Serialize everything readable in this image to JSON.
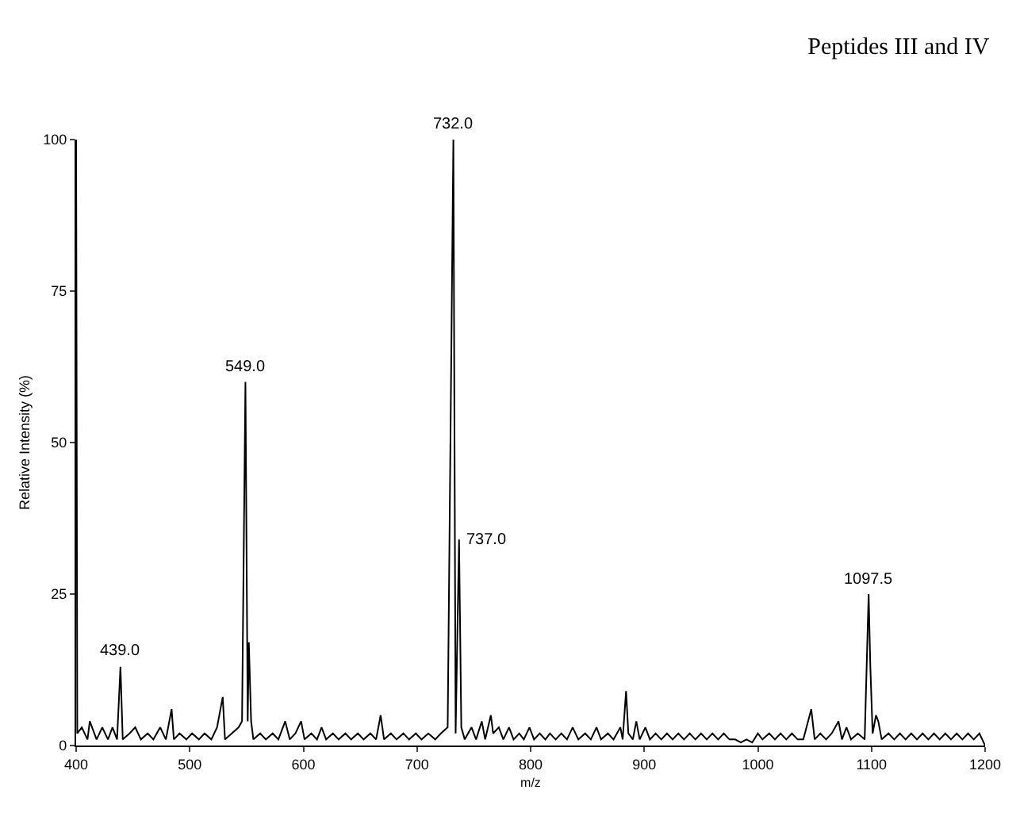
{
  "chart_data": {
    "type": "line",
    "title": "Peptides III and IV",
    "xlabel": "m/z",
    "ylabel": "Relative Intensity (%)",
    "x": [
      400,
      401,
      405,
      410,
      412,
      418,
      423,
      428,
      432,
      436,
      439,
      441,
      447,
      452,
      457,
      463,
      468,
      474,
      479,
      484,
      486,
      491,
      497,
      502,
      508,
      513,
      519,
      524,
      529,
      531,
      537,
      543,
      546,
      549,
      551,
      552,
      554,
      556,
      562,
      567,
      573,
      578,
      584,
      588,
      593,
      598,
      601,
      607,
      612,
      616,
      620,
      626,
      631,
      637,
      642,
      648,
      653,
      659,
      664,
      668,
      671,
      677,
      682,
      688,
      693,
      699,
      704,
      710,
      716,
      721,
      727,
      732,
      734,
      737,
      739,
      742,
      748,
      752,
      757,
      760,
      765,
      767,
      772,
      776,
      781,
      785,
      790,
      794,
      799,
      803,
      808,
      813,
      817,
      822,
      827,
      832,
      837,
      842,
      848,
      853,
      858,
      862,
      868,
      873,
      879,
      881,
      884,
      886,
      890,
      893,
      896,
      901,
      905,
      910,
      915,
      920,
      925,
      930,
      935,
      940,
      945,
      950,
      955,
      960,
      965,
      970,
      975,
      980,
      985,
      990,
      995,
      1000,
      1004,
      1010,
      1015,
      1020,
      1025,
      1030,
      1035,
      1040,
      1047,
      1050,
      1055,
      1060,
      1065,
      1071,
      1074,
      1078,
      1082,
      1088,
      1094,
      1097.5,
      1099,
      1101,
      1104,
      1106,
      1109,
      1115,
      1120,
      1125,
      1130,
      1135,
      1140,
      1145,
      1150,
      1155,
      1160,
      1165,
      1170,
      1175,
      1180,
      1185,
      1190,
      1195,
      1200
    ],
    "series": [
      {
        "color": "#000000",
        "values": [
          100,
          2,
          3,
          1,
          4,
          1,
          3,
          1,
          3,
          1,
          13,
          1,
          2,
          3,
          1,
          2,
          1,
          3,
          1,
          6,
          1,
          2,
          1,
          2,
          1,
          2,
          1,
          3,
          8,
          1,
          2,
          3,
          4,
          60,
          4,
          17,
          4,
          1,
          2,
          1,
          2,
          1,
          4,
          1,
          2,
          4,
          1,
          2,
          1,
          3,
          1,
          2,
          1,
          2,
          1,
          2,
          1,
          2,
          1,
          5,
          1,
          2,
          1,
          2,
          1,
          2,
          1,
          2,
          1,
          2,
          3,
          100,
          2,
          34,
          3,
          1,
          3,
          1,
          4,
          1,
          5,
          2,
          3,
          1,
          3,
          1,
          2,
          1,
          3,
          1,
          2,
          1,
          2,
          1,
          2,
          1,
          3,
          1,
          2,
          1,
          3,
          1,
          2,
          1,
          3,
          1,
          9,
          2,
          1,
          4,
          1,
          3,
          1,
          2,
          1,
          2,
          1,
          2,
          1,
          2,
          1,
          2,
          1,
          2,
          1,
          2,
          1,
          1,
          0.5,
          1,
          0.5,
          2,
          1,
          2,
          1,
          2,
          1,
          2,
          1,
          1,
          6,
          1,
          2,
          1,
          2,
          4,
          1,
          3,
          1,
          2,
          1,
          25,
          13,
          2,
          5,
          4,
          1,
          2,
          1,
          2,
          1,
          2,
          1,
          2,
          1,
          2,
          1,
          2,
          1,
          2,
          1,
          2,
          1,
          2,
          0
        ]
      }
    ],
    "annotations": [
      {
        "text": "439.0",
        "x": 439,
        "y": 13
      },
      {
        "text": "549.0",
        "x": 549,
        "y": 60
      },
      {
        "text": "732.0",
        "x": 732,
        "y": 100
      },
      {
        "text": "737.0",
        "x": 737,
        "y": 34
      },
      {
        "text": "1097.5",
        "x": 1097.5,
        "y": 25
      }
    ],
    "xlim": [
      400,
      1200
    ],
    "xticks": [
      400,
      500,
      600,
      700,
      800,
      900,
      1000,
      1100,
      1200
    ],
    "ylim": [
      0,
      100
    ],
    "yticks": [
      0,
      25,
      50,
      75,
      100
    ],
    "marker": "none",
    "line_style": "solid"
  }
}
